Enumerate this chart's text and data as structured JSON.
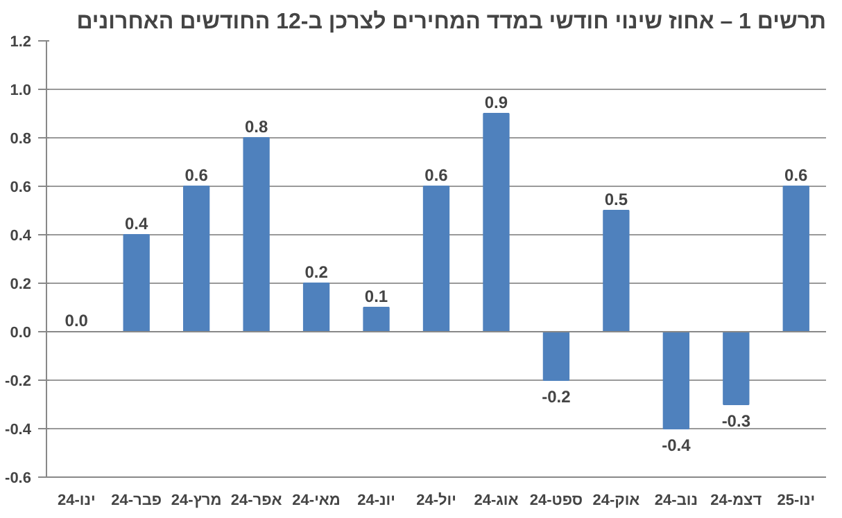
{
  "chart_data": {
    "type": "bar",
    "title": "תרשים 1 – אחוז שינוי חודשי במדד המחירים לצרכן ב-12 החודשים האחרונים",
    "categories": [
      "ינו-24",
      "פבר-24",
      "מרץ-24",
      "אפר-24",
      "מאי-24",
      "יונ-24",
      "יול-24",
      "אוג-24",
      "ספט-24",
      "אוק-24",
      "נוב-24",
      "דצמ-24",
      "ינו-25"
    ],
    "values": [
      0.0,
      0.4,
      0.6,
      0.8,
      0.2,
      0.1,
      0.6,
      0.9,
      -0.2,
      0.5,
      -0.4,
      -0.3,
      0.6
    ],
    "color": "#4f81bd",
    "ylim": [
      -0.6,
      1.2
    ],
    "yticks": [
      {
        "value": -0.6,
        "label": "-0.6"
      },
      {
        "value": -0.4,
        "label": "-0.4"
      },
      {
        "value": -0.2,
        "label": "-0.2"
      },
      {
        "value": 0,
        "label": "0.0"
      },
      {
        "value": 0.2,
        "label": "0.2"
      },
      {
        "value": 0.4,
        "label": "0.4"
      },
      {
        "value": 0.6,
        "label": "0.6"
      },
      {
        "value": 0.8,
        "label": "0.8"
      },
      {
        "value": 1.0,
        "label": "1.0"
      },
      {
        "value": 1.2,
        "label": "1.2"
      }
    ],
    "grid": "y",
    "value_labels": [
      "0.0",
      "0.4",
      "0.6",
      "0.8",
      "0.2",
      "0.1",
      "0.6",
      "0.9",
      "-0.2",
      "0.5",
      "-0.4",
      "-0.3",
      "0.6"
    ]
  }
}
